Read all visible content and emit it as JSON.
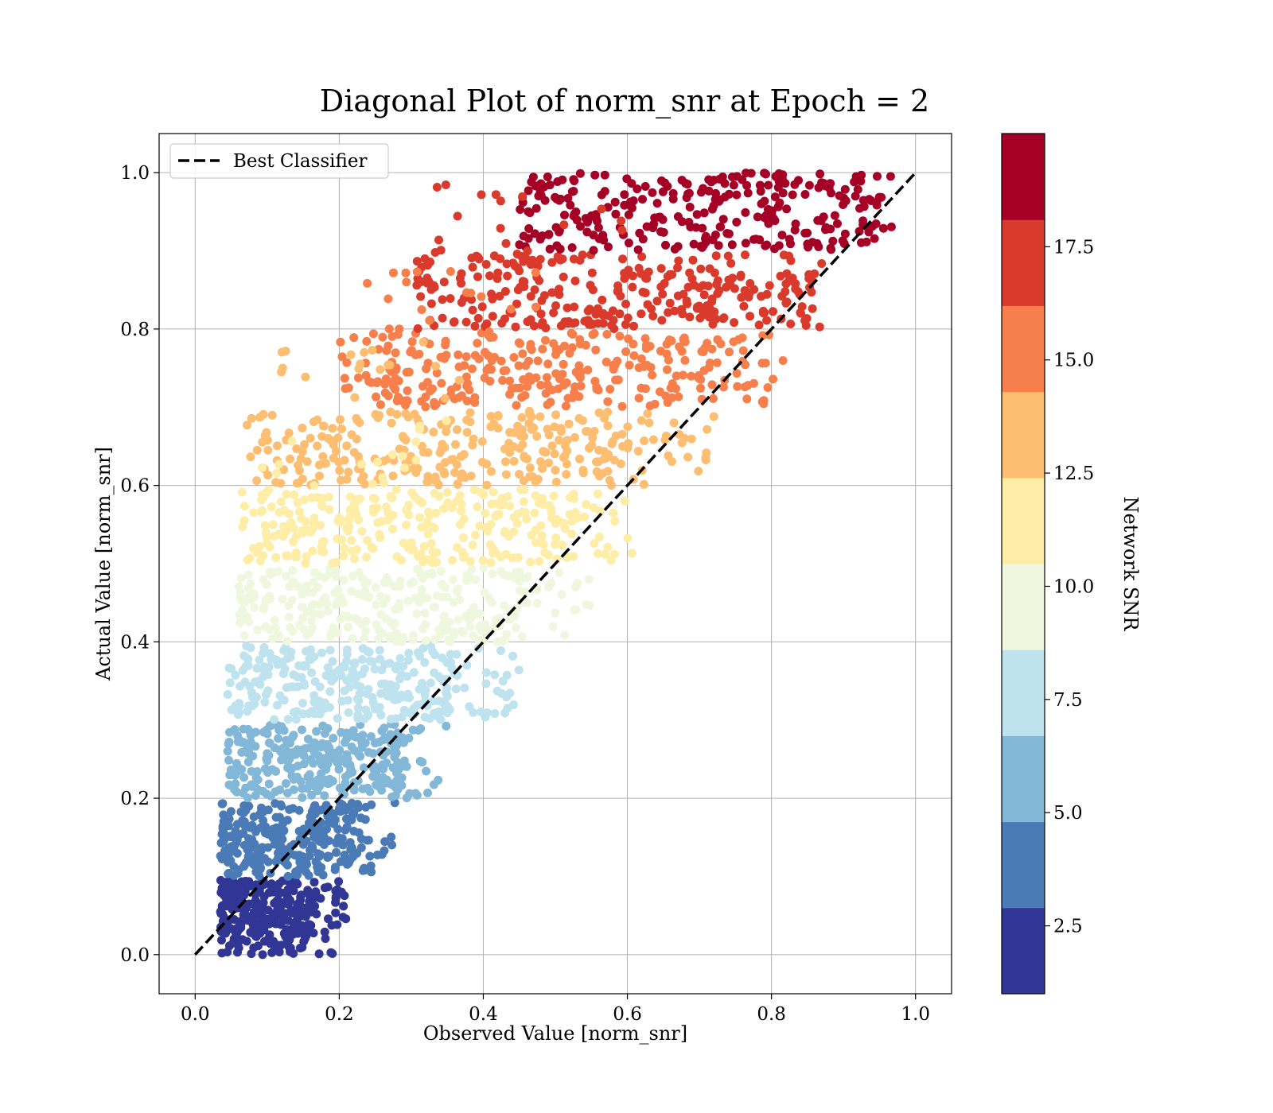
{
  "chart_data": {
    "type": "scatter",
    "title": "Diagonal Plot of norm_snr at Epoch = 2",
    "xlabel": "Observed Value [norm_snr]",
    "ylabel": "Actual Value [norm_snr]",
    "xlim": [
      -0.05,
      1.05
    ],
    "ylim": [
      -0.05,
      1.05
    ],
    "xticks": [
      0.0,
      0.2,
      0.4,
      0.6,
      0.8,
      1.0
    ],
    "yticks": [
      0.0,
      0.2,
      0.4,
      0.6,
      0.8,
      1.0
    ],
    "xtick_labels": [
      "0.0",
      "0.2",
      "0.4",
      "0.6",
      "0.8",
      "1.0"
    ],
    "ytick_labels": [
      "0.0",
      "0.2",
      "0.4",
      "0.6",
      "0.8",
      "1.0"
    ],
    "grid": true,
    "legend": {
      "placement": "top-left",
      "entries": [
        {
          "label": "Best Classifier",
          "style": "dashed",
          "color": "#000000"
        }
      ]
    },
    "reference_line": {
      "name": "Best Classifier",
      "x": [
        0.0,
        1.0
      ],
      "y": [
        0.0,
        1.0
      ]
    },
    "colorbar": {
      "label": "Network SNR",
      "range": [
        1.0,
        20.0
      ],
      "ticks": [
        2.5,
        5.0,
        7.5,
        10.0,
        12.5,
        15.0,
        17.5
      ],
      "tick_labels": [
        "2.5",
        "5.0",
        "7.5",
        "10.0",
        "12.5",
        "15.0",
        "17.5"
      ],
      "bands": [
        {
          "snr_range": [
            1.0,
            2.9
          ],
          "color": "#313695"
        },
        {
          "snr_range": [
            2.9,
            4.8
          ],
          "color": "#4a7bb7"
        },
        {
          "snr_range": [
            4.8,
            6.7
          ],
          "color": "#82b7d7"
        },
        {
          "snr_range": [
            6.7,
            8.6
          ],
          "color": "#bee3ee"
        },
        {
          "snr_range": [
            8.6,
            10.5
          ],
          "color": "#eff8df"
        },
        {
          "snr_range": [
            10.5,
            12.4
          ],
          "color": "#feeda6"
        },
        {
          "snr_range": [
            12.4,
            14.3
          ],
          "color": "#fdbe71"
        },
        {
          "snr_range": [
            14.3,
            16.2
          ],
          "color": "#f67f4b"
        },
        {
          "snr_range": [
            16.2,
            18.1
          ],
          "color": "#da3a2c"
        },
        {
          "snr_range": [
            18.1,
            20.0
          ],
          "color": "#a50026"
        }
      ]
    },
    "point_bands": [
      {
        "y_range": [
          0.0,
          0.095
        ],
        "x_range": [
          0.035,
          0.165
        ],
        "x_tail": 0.21,
        "color": "#313695"
      },
      {
        "y_range": [
          0.1,
          0.195
        ],
        "x_range": [
          0.035,
          0.22
        ],
        "x_tail": 0.28,
        "color": "#4a7bb7"
      },
      {
        "y_range": [
          0.2,
          0.295
        ],
        "x_range": [
          0.045,
          0.28
        ],
        "x_tail": 0.35,
        "color": "#82b7d7"
      },
      {
        "y_range": [
          0.3,
          0.395
        ],
        "x_range": [
          0.045,
          0.36
        ],
        "x_tail": 0.45,
        "color": "#bee3ee"
      },
      {
        "y_range": [
          0.4,
          0.495
        ],
        "x_range": [
          0.06,
          0.45
        ],
        "x_tail": 0.56,
        "color": "#eff8df"
      },
      {
        "y_range": [
          0.5,
          0.595
        ],
        "x_range": [
          0.065,
          0.52
        ],
        "x_tail": 0.62,
        "color": "#feeda6"
      },
      {
        "y_range": [
          0.6,
          0.695
        ],
        "x_range": [
          0.07,
          0.6
        ],
        "x_tail": 0.72,
        "color": "#fdbe71"
      },
      {
        "y_range": [
          0.7,
          0.795
        ],
        "x_range": [
          0.2,
          0.72
        ],
        "x_tail": 0.82,
        "color": "#f67f4b"
      },
      {
        "y_range": [
          0.8,
          0.895
        ],
        "x_range": [
          0.3,
          0.82
        ],
        "x_tail": 0.87,
        "color": "#da3a2c"
      },
      {
        "y_range": [
          0.9,
          1.0
        ],
        "x_range": [
          0.45,
          0.92
        ],
        "x_tail": 0.97,
        "color": "#a50026"
      }
    ]
  }
}
